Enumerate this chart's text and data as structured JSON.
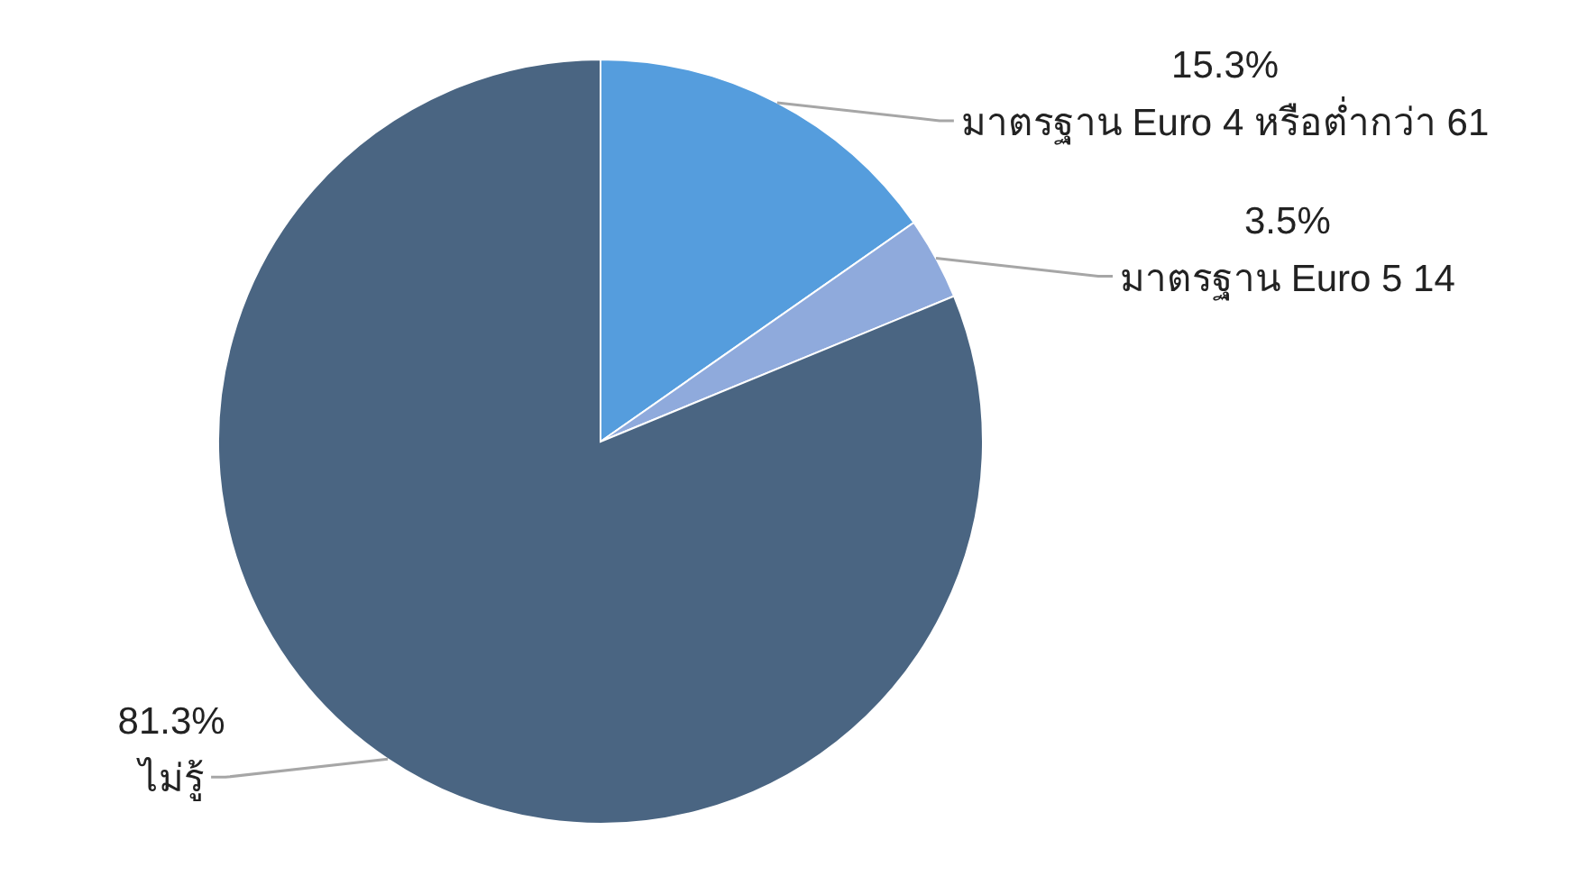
{
  "chart_data": {
    "type": "pie",
    "categories": [
      "มาตรฐาน Euro 4 หรือต่ำกว่า 61",
      "มาตรฐาน Euro 5 14",
      "ไม่รู้"
    ],
    "values": [
      15.3,
      3.5,
      81.3
    ],
    "colors": [
      "#559ddd",
      "#8faadc",
      "#4a6582"
    ],
    "value_labels": [
      "15.3%",
      "3.5%",
      "81.3%"
    ]
  }
}
